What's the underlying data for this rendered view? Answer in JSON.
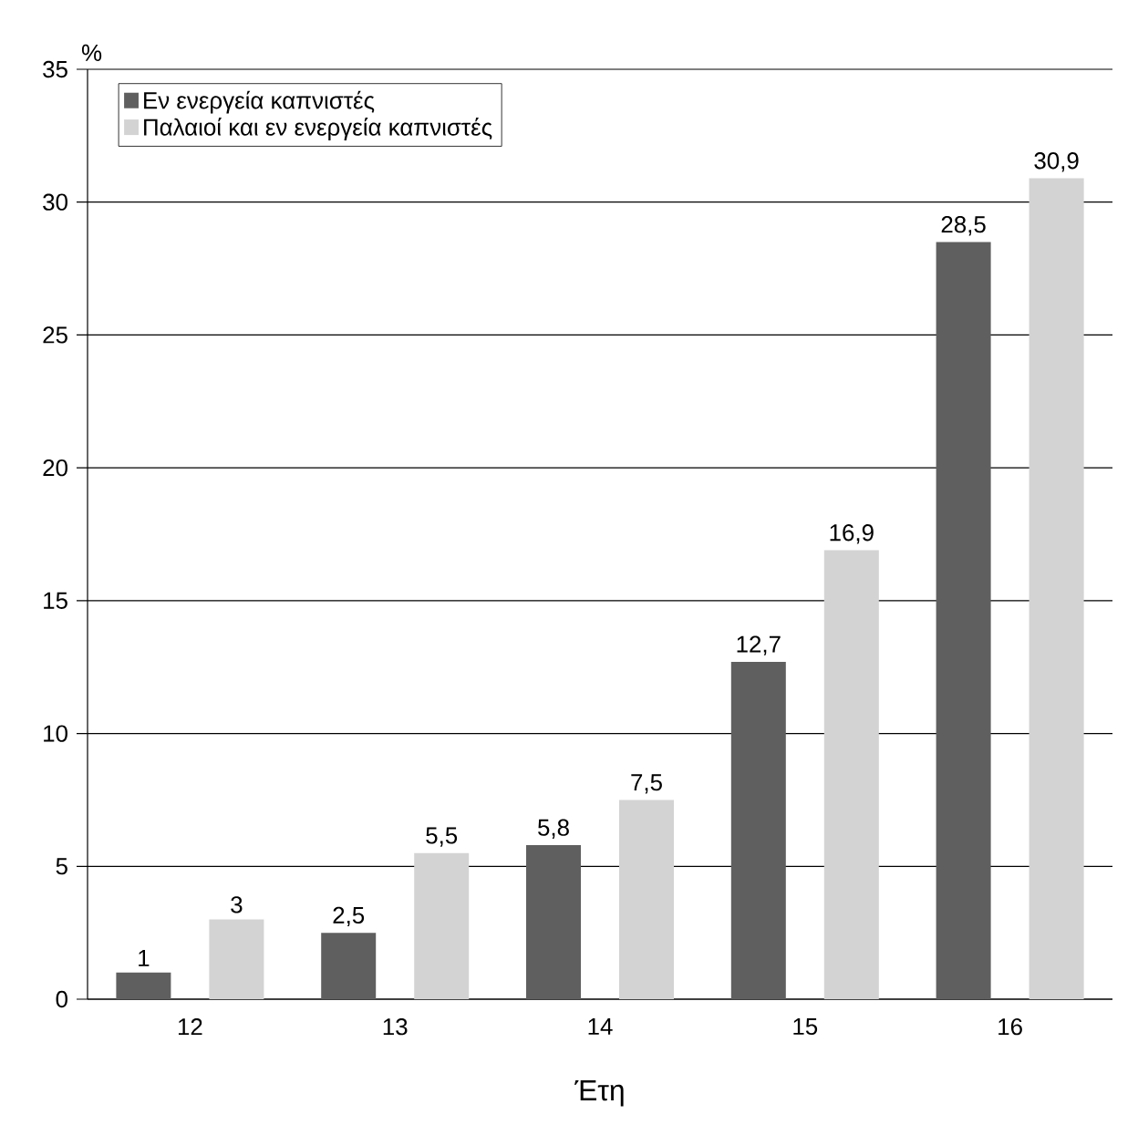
{
  "chart_data": {
    "type": "bar",
    "xlabel": "Έτη",
    "ylabel": "%",
    "categories": [
      "12",
      "13",
      "14",
      "15",
      "16"
    ],
    "series": [
      {
        "name": "Εν ενεργεία καπνιστές",
        "color": "#5f5f5f",
        "values": [
          1,
          2.5,
          5.8,
          12.7,
          28.5
        ],
        "value_labels": [
          "1",
          "2,5",
          "5,8",
          "12,7",
          "28,5"
        ]
      },
      {
        "name": "Παλαιοί και εν ενεργεία καπνιστές",
        "color": "#d3d3d3",
        "values": [
          3,
          5.5,
          7.5,
          16.9,
          30.9
        ],
        "value_labels": [
          "3",
          "5,5",
          "7,5",
          "16,9",
          "30,9"
        ]
      }
    ],
    "ylim": [
      0,
      35
    ],
    "yticks": [
      0,
      5,
      10,
      15,
      20,
      25,
      30,
      35
    ],
    "grid": "y",
    "legend": "top left"
  }
}
